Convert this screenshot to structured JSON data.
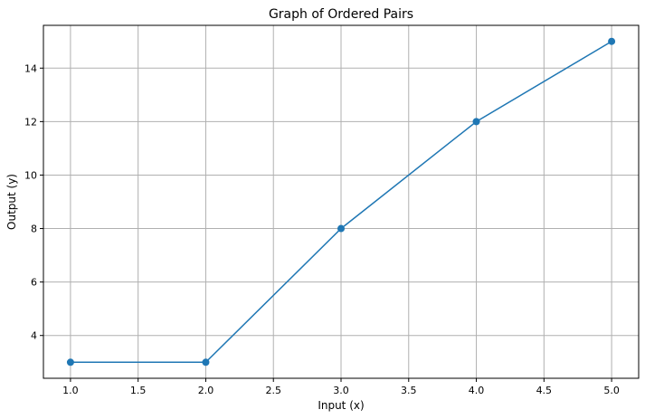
{
  "chart_data": {
    "type": "line",
    "title": "Graph of Ordered Pairs",
    "xlabel": "Input (x)",
    "ylabel": "Output (y)",
    "x": [
      1,
      2,
      3,
      4,
      5
    ],
    "series": [
      {
        "values": [
          3,
          3,
          8,
          12,
          15
        ],
        "color": "#1f77b4",
        "marker": "circle"
      }
    ],
    "xlim": [
      0.8,
      5.2
    ],
    "ylim": [
      2.4,
      15.6
    ],
    "xticks": [
      1.0,
      1.5,
      2.0,
      2.5,
      3.0,
      3.5,
      4.0,
      4.5,
      5.0
    ],
    "xtick_labels": [
      "1.0",
      "1.5",
      "2.0",
      "2.5",
      "3.0",
      "3.5",
      "4.0",
      "4.5",
      "5.0"
    ],
    "yticks": [
      4,
      6,
      8,
      10,
      12,
      14
    ],
    "ytick_labels": [
      "4",
      "6",
      "8",
      "10",
      "12",
      "14"
    ],
    "grid": true,
    "legend": "none"
  }
}
